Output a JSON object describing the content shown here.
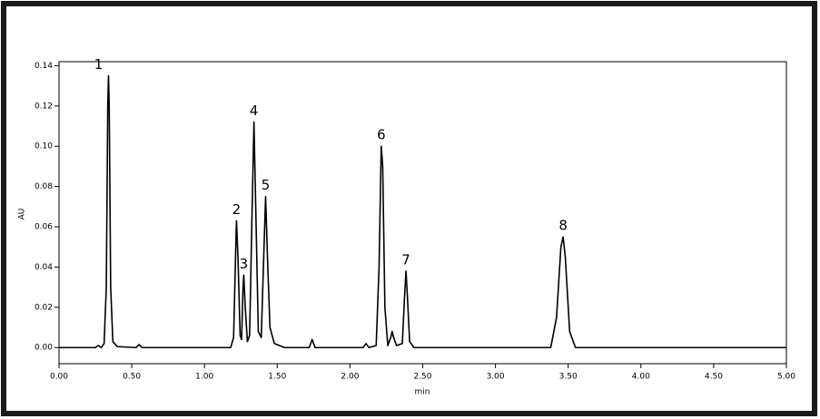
{
  "chart_data": {
    "type": "line",
    "y_label": "AU",
    "x_label": "min",
    "color": "#000000",
    "xlim": [
      0,
      5
    ],
    "ylim": [
      -0.008,
      0.142
    ],
    "xticks": [
      {
        "value": 0,
        "label": "0.00"
      },
      {
        "value": 0.5,
        "label": "0.50"
      },
      {
        "value": 1,
        "label": "1.00"
      },
      {
        "value": 1.5,
        "label": "1.50"
      },
      {
        "value": 2,
        "label": "2.00"
      },
      {
        "value": 2.5,
        "label": "2.50"
      },
      {
        "value": 3,
        "label": "3.00"
      },
      {
        "value": 3.5,
        "label": "3.50"
      },
      {
        "value": 4,
        "label": "4.00"
      },
      {
        "value": 4.5,
        "label": "4.50"
      },
      {
        "value": 5,
        "label": "5.00"
      }
    ],
    "yticks": [
      {
        "value": 0,
        "label": "0.00"
      },
      {
        "value": 0.02,
        "label": "0.02"
      },
      {
        "value": 0.04,
        "label": "0.04"
      },
      {
        "value": 0.06,
        "label": "0.06"
      },
      {
        "value": 0.08,
        "label": "0.08"
      },
      {
        "value": 0.1,
        "label": "0.10"
      },
      {
        "value": 0.12,
        "label": "0.12"
      },
      {
        "value": 0.14,
        "label": "0.14"
      }
    ],
    "x": [
      0,
      0.25,
      0.27,
      0.29,
      0.31,
      0.325,
      0.335,
      0.34,
      0.345,
      0.355,
      0.37,
      0.4,
      0.53,
      0.55,
      0.57,
      1.18,
      1.2,
      1.215,
      1.22,
      1.23,
      1.245,
      1.255,
      1.265,
      1.27,
      1.28,
      1.295,
      1.31,
      1.325,
      1.34,
      1.355,
      1.37,
      1.39,
      1.405,
      1.42,
      1.435,
      1.45,
      1.48,
      1.55,
      1.72,
      1.74,
      1.76,
      2.09,
      2.11,
      2.13,
      2.18,
      2.2,
      2.215,
      2.225,
      2.24,
      2.26,
      2.28,
      2.29,
      2.3,
      2.32,
      2.36,
      2.375,
      2.385,
      2.395,
      2.41,
      2.44,
      3.38,
      3.42,
      3.45,
      3.465,
      3.48,
      3.51,
      3.55,
      5
    ],
    "values": [
      0,
      0,
      0.001,
      0,
      0.002,
      0.03,
      0.12,
      0.135,
      0.12,
      0.03,
      0.003,
      0.0005,
      0,
      0.0015,
      0,
      0,
      0.005,
      0.05,
      0.063,
      0.045,
      0.006,
      0.004,
      0.03,
      0.036,
      0.02,
      0.003,
      0.006,
      0.06,
      0.112,
      0.06,
      0.008,
      0.005,
      0.04,
      0.075,
      0.04,
      0.01,
      0.002,
      0,
      0,
      0.004,
      0,
      0,
      0.002,
      0,
      0.001,
      0.04,
      0.1,
      0.09,
      0.02,
      0.001,
      0.005,
      0.008,
      0.005,
      0.001,
      0.002,
      0.025,
      0.038,
      0.025,
      0.003,
      0,
      0,
      0.015,
      0.05,
      0.055,
      0.045,
      0.008,
      0,
      0
    ],
    "peaks": [
      {
        "label": "1",
        "x": 0.34,
        "value": 0.135
      },
      {
        "label": "2",
        "x": 1.22,
        "value": 0.063
      },
      {
        "label": "3",
        "x": 1.27,
        "value": 0.036
      },
      {
        "label": "4",
        "x": 1.34,
        "value": 0.112
      },
      {
        "label": "5",
        "x": 1.42,
        "value": 0.075
      },
      {
        "label": "6",
        "x": 2.215,
        "value": 0.1
      },
      {
        "label": "7",
        "x": 2.385,
        "value": 0.038
      },
      {
        "label": "8",
        "x": 3.465,
        "value": 0.055
      }
    ]
  }
}
